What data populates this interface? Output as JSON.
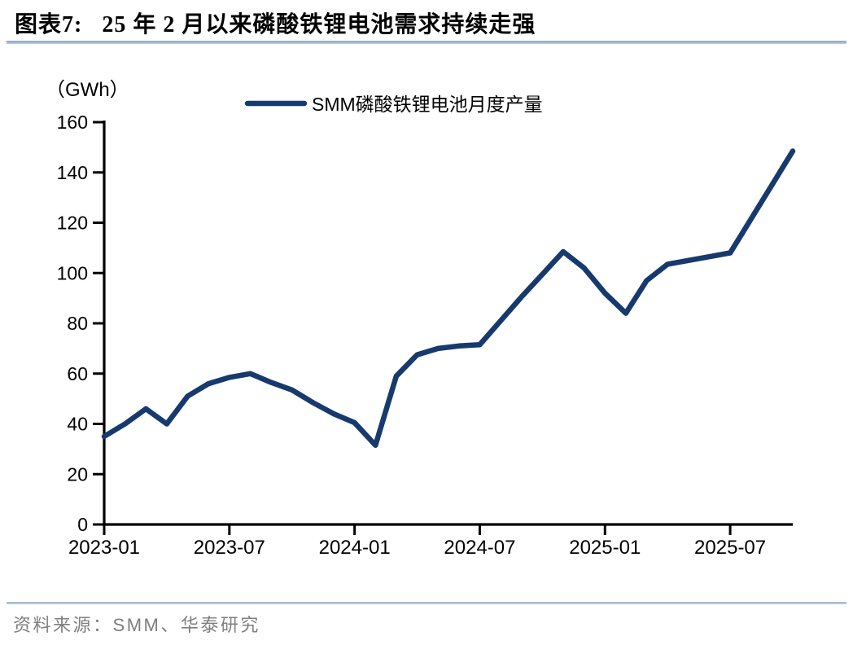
{
  "header": {
    "figure_label": "图表7:",
    "title": "25 年 2 月以来磷酸铁锂电池需求持续走强"
  },
  "footer": {
    "source_label": "资料来源：",
    "source_text": "SMM、华泰研究"
  },
  "chart_data": {
    "type": "line",
    "title": "",
    "unit_label": "（GWh）",
    "legend": [
      "SMM磷酸铁锂电池月度产量"
    ],
    "legend_position": "top-center",
    "grid": false,
    "ylim": [
      0,
      160
    ],
    "y_tick_step": 20,
    "y_ticks": [
      0,
      20,
      40,
      60,
      80,
      100,
      120,
      140,
      160
    ],
    "x_tick_labels": [
      "2023-01",
      "2023-07",
      "2024-01",
      "2024-07",
      "2025-01",
      "2025-07"
    ],
    "x": [
      "2023-01",
      "2023-02",
      "2023-03",
      "2023-04",
      "2023-05",
      "2023-06",
      "2023-07",
      "2023-08",
      "2023-09",
      "2023-10",
      "2023-11",
      "2023-12",
      "2024-01",
      "2024-02",
      "2024-03",
      "2024-04",
      "2024-05",
      "2024-06",
      "2024-07",
      "2024-08",
      "2024-09",
      "2024-10",
      "2024-11",
      "2024-12",
      "2025-01",
      "2025-02",
      "2025-03",
      "2025-04",
      "2025-05",
      "2025-06",
      "2025-07",
      "2025-08",
      "2025-09",
      "2025-10"
    ],
    "series": [
      {
        "name": "SMM磷酸铁锂电池月度产量",
        "values": [
          35,
          40,
          46,
          40,
          51,
          56,
          58.5,
          60,
          56.5,
          53.5,
          48.5,
          44,
          40.5,
          31.5,
          59,
          67.5,
          70,
          71,
          71.5,
          81,
          90.5,
          99.5,
          108.5,
          102,
          92,
          84,
          97,
          103.5,
          105,
          106.5,
          108,
          121.5,
          135,
          148.5
        ]
      }
    ],
    "line_color": "#173a6e",
    "axis_color": "#000000",
    "tick_label_color": "#000000"
  }
}
